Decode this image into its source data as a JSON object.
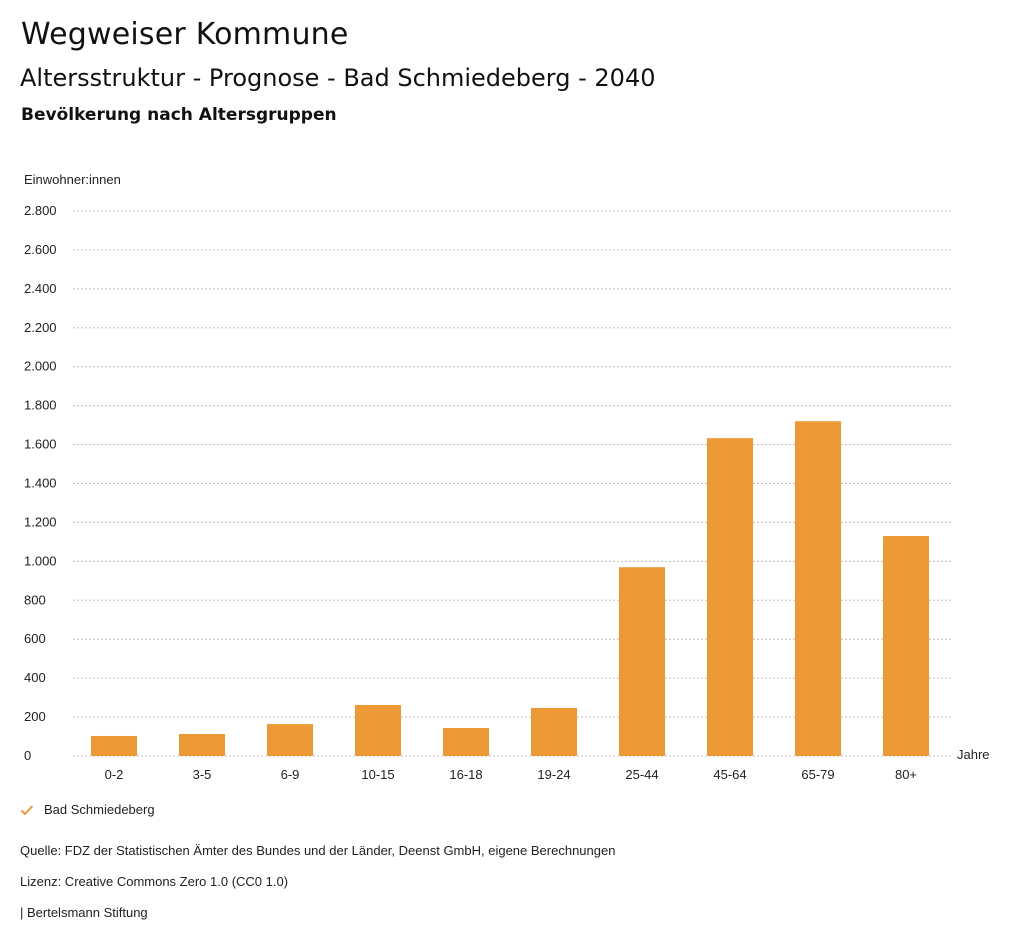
{
  "header": {
    "title": "Wegweiser Kommune",
    "subtitle": "Altersstruktur - Prognose - Bad Schmiedeberg - 2040",
    "subsubtitle": "Bevölkerung nach Altersgruppen"
  },
  "chart_data": {
    "type": "bar",
    "title": "Bevölkerung nach Altersgruppen",
    "ylabel": "Einwohner:innen",
    "xlabel": "Jahre",
    "categories": [
      "0-2",
      "3-5",
      "6-9",
      "10-15",
      "16-18",
      "19-24",
      "25-44",
      "45-64",
      "65-79",
      "80+"
    ],
    "series": [
      {
        "name": "Bad Schmiedeberg",
        "color": "#ED9935",
        "values": [
          103,
          113,
          164,
          262,
          144,
          247,
          970,
          1633,
          1720,
          1130
        ]
      }
    ],
    "ylim": [
      0,
      2800
    ],
    "yticks": [
      0,
      200,
      400,
      600,
      800,
      1000,
      1200,
      1400,
      1600,
      1800,
      2000,
      2200,
      2400,
      2600,
      2800
    ],
    "ytick_labels": [
      "0",
      "200",
      "400",
      "600",
      "800",
      "1.000",
      "1.200",
      "1.400",
      "1.600",
      "1.800",
      "2.000",
      "2.200",
      "2.400",
      "2.600",
      "2.800"
    ],
    "grid": true,
    "legend": "bottom-left"
  },
  "legend": {
    "label": "Bad Schmiedeberg",
    "icon": "check-icon",
    "color": "#ED9935"
  },
  "footer": {
    "source": "Quelle: FDZ der Statistischen Ämter des Bundes und der Länder, Deenst GmbH, eigene Berechnungen",
    "license": "Lizenz: Creative Commons Zero 1.0 (CC0 1.0)",
    "publisher": "| Bertelsmann Stiftung"
  }
}
